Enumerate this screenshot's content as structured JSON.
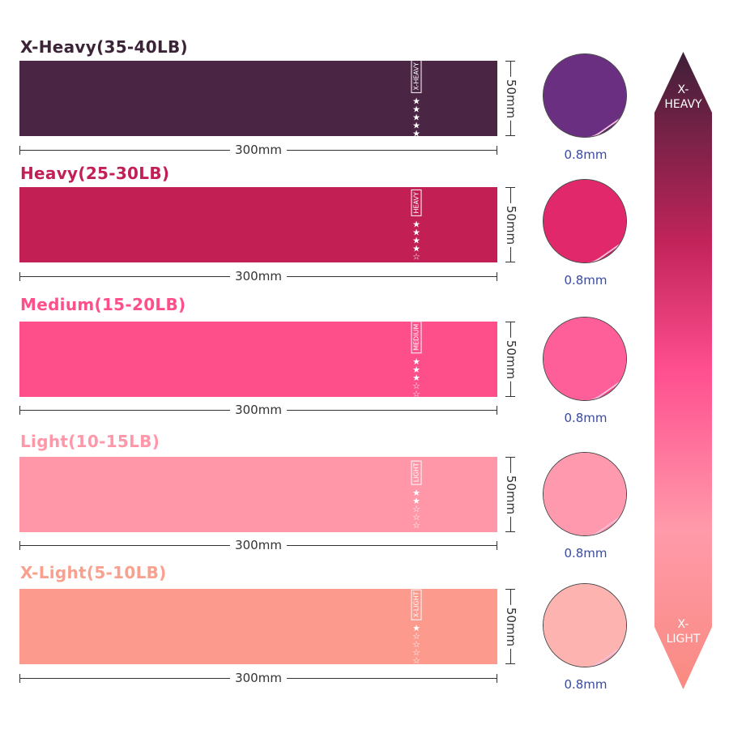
{
  "bands": [
    {
      "title": "X-Heavy(35-40LB)",
      "label": "X-HEAVY",
      "stars_filled": 5,
      "stars_total": 5,
      "color": "#4a2544",
      "title_color": "#3c2438",
      "thickness": "0.8mm",
      "width": "300mm",
      "height": "50mm"
    },
    {
      "title": "Heavy(25-30LB)",
      "label": "HEAVY",
      "stars_filled": 4,
      "stars_total": 5,
      "color": "#c21f55",
      "title_color": "#c21f55",
      "thickness": "0.8mm",
      "width": "300mm",
      "height": "50mm"
    },
    {
      "title": "Medium(15-20LB)",
      "label": "MEDIUM",
      "stars_filled": 3,
      "stars_total": 5,
      "color": "#ff4f8a",
      "title_color": "#ff4f8a",
      "thickness": "0.8mm",
      "width": "300mm",
      "height": "50mm"
    },
    {
      "title": "Light(10-15LB)",
      "label": "LIGHT",
      "stars_filled": 2,
      "stars_total": 5,
      "color": "#ff97a8",
      "title_color": "#ff97a8",
      "thickness": "0.8mm",
      "width": "300mm",
      "height": "50mm"
    },
    {
      "title": "X-Light(5-10LB)",
      "label": "X-LIGHT",
      "stars_filled": 1,
      "stars_total": 5,
      "color": "#fc9a8e",
      "title_color": "#f9a08f",
      "thickness": "0.8mm",
      "width": "300mm",
      "height": "50mm"
    }
  ],
  "scale": {
    "top_label": "X-\nHEAVY",
    "bottom_label": "X-\nLIGHT",
    "gradient": [
      "#4a2040",
      "#c2245a",
      "#ff4f8f",
      "#ff9aaa",
      "#f98a80"
    ]
  }
}
